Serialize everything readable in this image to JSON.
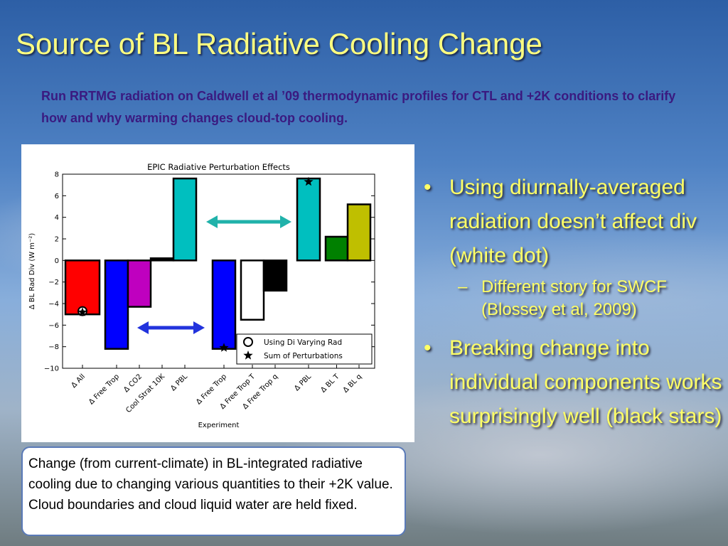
{
  "title": "Source of BL Radiative Cooling Change",
  "subtitle": "Run RRTMG radiation on Caldwell et al ’09 thermodynamic profiles for CTL and +2K conditions to clarify how and why warming changes cloud-top cooling.",
  "bullets": [
    "Using diurnally-averaged radiation doesn’t affect div (white dot)",
    "Different story for SWCF (Blossey et al, 2009)",
    "Breaking change into individual components works surprisingly well (black stars)"
  ],
  "caption": "Change (from current-climate) in BL-integrated radiative cooling due to changing various quantities to their +2K value. Cloud boundaries and cloud liquid water are held fixed.",
  "chart_data": {
    "type": "bar",
    "title": "EPIC Radiative Perturbation Effects",
    "x_label": "Experiment",
    "y_label": "Δ BL Rad Div (W m⁻²)",
    "categories": [
      "Δ All",
      "Δ Free Trop",
      "Δ CO2",
      "Cool Strat 10K",
      "Δ PBL",
      "Δ Free Trop",
      "Δ Free Trop T",
      "Δ Free Trop q",
      "Δ PBL",
      "Δ BL T",
      "Δ BL q"
    ],
    "values": [
      -5,
      -8.2,
      -4.3,
      0.2,
      7.6,
      -8.2,
      -5.5,
      -2.8,
      7.6,
      2.2,
      5.2
    ],
    "colors": [
      "#ff0000",
      "#0000ff",
      "#bf00bf",
      "#000000",
      "#00bfbf",
      "#0000ff",
      "#ffffff",
      "#000000",
      "#00bfbf",
      "#008000",
      "#bfbf00"
    ],
    "series": [
      {
        "name": "Using Di Varying Rad",
        "marker": "circle",
        "values": [
          -4.7,
          null,
          null,
          null,
          null,
          null,
          null,
          null,
          null,
          null,
          null
        ]
      },
      {
        "name": "Sum of Perturbations",
        "marker": "star",
        "values": [
          -4.8,
          null,
          null,
          null,
          null,
          -8.1,
          null,
          null,
          7.3,
          null,
          null
        ]
      }
    ],
    "ylim": [
      -10,
      8
    ],
    "yticks": [
      {
        "value": -10,
        "label": "−10"
      },
      {
        "value": -8,
        "label": "−8"
      },
      {
        "value": -6,
        "label": "−6"
      },
      {
        "value": -4,
        "label": "−4"
      },
      {
        "value": -2,
        "label": "−2"
      },
      0,
      2,
      4,
      6,
      8
    ],
    "legend": "lower right"
  }
}
